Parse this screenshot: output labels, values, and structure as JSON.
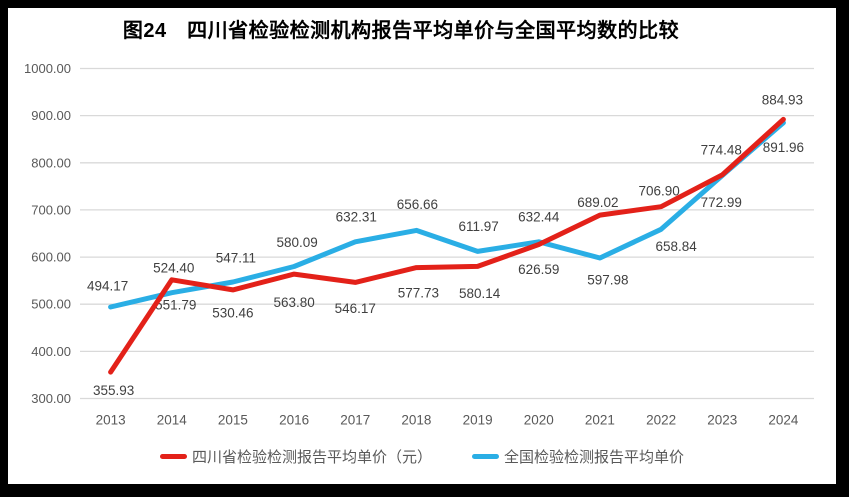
{
  "title": "图24　四川省检验检测机构报告平均单价与全国平均数的比较",
  "chart_data": {
    "type": "line",
    "title": "图24　四川省检验检测机构报告平均单价与全国平均数的比较",
    "categories": [
      "2013",
      "2014",
      "2015",
      "2016",
      "2017",
      "2018",
      "2019",
      "2020",
      "2021",
      "2022",
      "2023",
      "2024"
    ],
    "series": [
      {
        "name": "四川省检验检测报告平均单价（元）",
        "color": "#e32119",
        "values": [
          355.93,
          551.79,
          530.46,
          563.8,
          546.17,
          577.73,
          580.14,
          626.59,
          689.02,
          706.9,
          774.48,
          891.96
        ],
        "label_offsets": [
          [
            3,
            18
          ],
          [
            4,
            25
          ],
          [
            0,
            23
          ],
          [
            0,
            28
          ],
          [
            0,
            26
          ],
          [
            2,
            25
          ],
          [
            2,
            27
          ],
          [
            0,
            25
          ],
          [
            -2,
            -13
          ],
          [
            -2,
            -16
          ],
          [
            -1,
            -25
          ],
          [
            0,
            28
          ]
        ]
      },
      {
        "name": "全国检验检测报告平均单价",
        "color": "#2aaee5",
        "values": [
          494.17,
          524.4,
          547.11,
          580.09,
          632.31,
          656.66,
          611.97,
          632.44,
          597.98,
          658.84,
          772.99,
          884.93
        ],
        "label_offsets": [
          [
            -3,
            -21
          ],
          [
            2,
            -25
          ],
          [
            3,
            -24
          ],
          [
            3,
            -24
          ],
          [
            1,
            -25
          ],
          [
            1,
            -26
          ],
          [
            1,
            -25
          ],
          [
            0,
            -25
          ],
          [
            8,
            22
          ],
          [
            15,
            17
          ],
          [
            -1,
            27
          ],
          [
            -1,
            -23
          ]
        ]
      }
    ],
    "ylim": [
      300,
      1000
    ],
    "y_tick_step": 100,
    "y_ticks": [
      "300.00",
      "400.00",
      "500.00",
      "600.00",
      "700.00",
      "800.00",
      "900.00",
      "1000.00"
    ],
    "value_decimals": 2,
    "grid": true,
    "legend_position": "bottom",
    "xlabel": "",
    "ylabel": "",
    "colors": {
      "grid": "#d9d9d9",
      "axis_text": "#595959",
      "data_label": "#404040",
      "title_text": "#000000",
      "frame": "#000000",
      "background": "#ffffff"
    }
  }
}
